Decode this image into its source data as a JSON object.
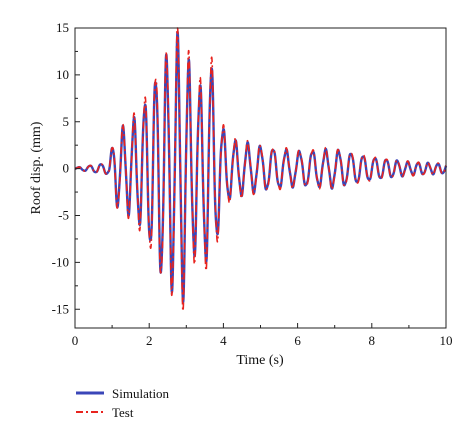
{
  "chart_data": {
    "type": "line",
    "title": "",
    "xlabel": "Time (s)",
    "ylabel": "Roof disp. (mm)",
    "xlim": [
      0,
      10
    ],
    "ylim": [
      -17,
      15
    ],
    "xticks": [
      0,
      2,
      4,
      6,
      8,
      10
    ],
    "yticks": [
      15,
      10,
      5,
      0,
      -5,
      -10,
      -15
    ],
    "grid": false,
    "legend_position": "bottom-left, below plot",
    "envelope_peaks": [
      {
        "t": 0.0,
        "amp": 0.1
      },
      {
        "t": 0.9,
        "amp": 0.6
      },
      {
        "t": 1.1,
        "amp": 3.8
      },
      {
        "t": 1.4,
        "amp": 4.5
      },
      {
        "t": 1.7,
        "amp": 5.6
      },
      {
        "t": 2.0,
        "amp": 8.0
      },
      {
        "t": 2.3,
        "amp": 11.0
      },
      {
        "t": 2.6,
        "amp": 12.2
      },
      {
        "t": 2.85,
        "amp": 14.2
      },
      {
        "t": 3.2,
        "amp": 9.0
      },
      {
        "t": 3.45,
        "amp": 8.5
      },
      {
        "t": 3.65,
        "amp": 11.5
      },
      {
        "t": 3.95,
        "amp": 4.5
      },
      {
        "t": 4.2,
        "amp": 3.0
      },
      {
        "t": 5.0,
        "amp": 2.3
      },
      {
        "t": 6.0,
        "amp": 1.8
      },
      {
        "t": 7.0,
        "amp": 2.0
      },
      {
        "t": 8.0,
        "amp": 1.2
      },
      {
        "t": 9.0,
        "amp": 0.7
      },
      {
        "t": 10.0,
        "amp": 0.5
      }
    ],
    "series": [
      {
        "name": "Simulation",
        "color": "#3a46b8",
        "style": "solid"
      },
      {
        "name": "Test",
        "color": "#e8231e",
        "style": "dash-dot"
      }
    ]
  }
}
